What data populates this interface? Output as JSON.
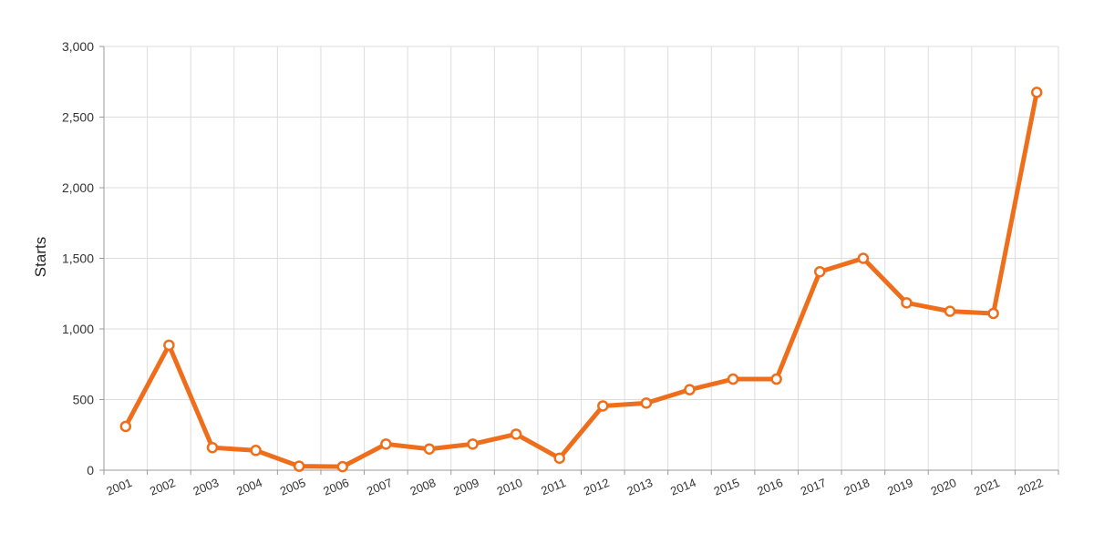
{
  "chart_data": {
    "type": "line",
    "title": "",
    "xlabel": "",
    "ylabel": "Starts",
    "categories": [
      "2001",
      "2002",
      "2003",
      "2004",
      "2005",
      "2006",
      "2007",
      "2008",
      "2009",
      "2010",
      "2011",
      "2012",
      "2013",
      "2014",
      "2015",
      "2016",
      "2017",
      "2018",
      "2019",
      "2020",
      "2021",
      "2022"
    ],
    "series": [
      {
        "color": "#ee6e1b",
        "values": [
          310,
          885,
          160,
          140,
          28,
          25,
          185,
          150,
          185,
          255,
          85,
          455,
          475,
          570,
          645,
          645,
          1405,
          1500,
          1185,
          1125,
          1110,
          2675
        ]
      }
    ],
    "ylim": [
      0,
      3000
    ],
    "yticks": [
      0,
      500,
      1000,
      1500,
      2000,
      2500,
      3000
    ],
    "ytick_labels": [
      "0",
      "500",
      "1,000",
      "1,500",
      "2,000",
      "2,500",
      "3,000"
    ],
    "grid": true,
    "legend": "none"
  }
}
